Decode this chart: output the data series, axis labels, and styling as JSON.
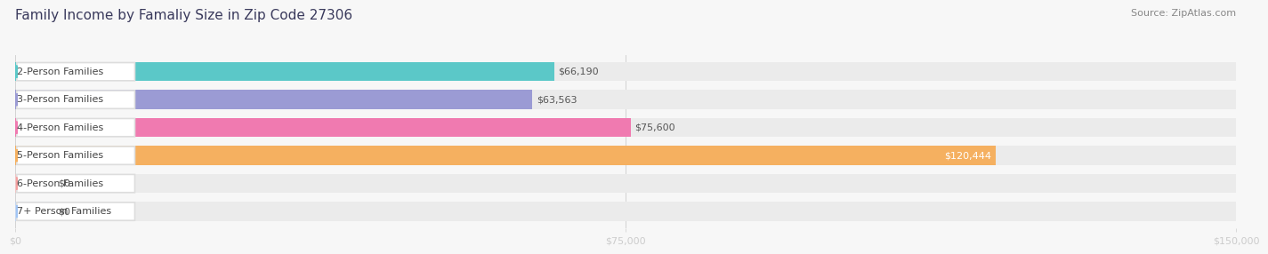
{
  "title": "Family Income by Famaliy Size in Zip Code 27306",
  "source": "Source: ZipAtlas.com",
  "categories": [
    "2-Person Families",
    "3-Person Families",
    "4-Person Families",
    "5-Person Families",
    "6-Person Families",
    "7+ Person Families"
  ],
  "values": [
    66190,
    63563,
    75600,
    120444,
    0,
    0
  ],
  "bar_colors": [
    "#5bc8c8",
    "#9b9bd4",
    "#f07ab0",
    "#f5b060",
    "#f5a0a0",
    "#a0c4f5"
  ],
  "value_labels": [
    "$66,190",
    "$63,563",
    "$75,600",
    "$120,444",
    "$0",
    "$0"
  ],
  "xlim": [
    0,
    150000
  ],
  "xticks": [
    0,
    75000,
    150000
  ],
  "xtick_labels": [
    "$0",
    "$75,000",
    "$150,000"
  ],
  "background_color": "#f7f7f7",
  "bar_background": "#ebebeb",
  "label_box_color": "#ffffff",
  "title_fontsize": 11,
  "source_fontsize": 8,
  "label_fontsize": 8,
  "value_fontsize": 8,
  "tick_fontsize": 8
}
